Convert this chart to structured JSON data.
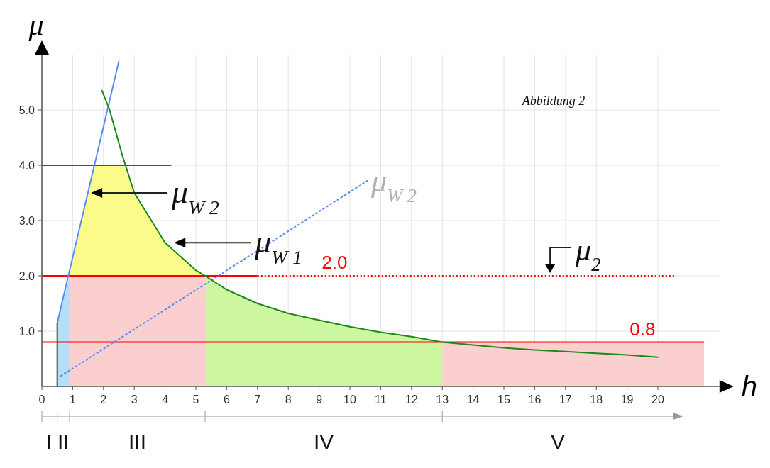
{
  "chart_data": {
    "type": "line",
    "xlabel": "h",
    "ylabel": "μ",
    "xlim": [
      0,
      22
    ],
    "ylim": [
      0,
      6
    ],
    "xticks": [
      0,
      1,
      2,
      3,
      4,
      5,
      6,
      7,
      8,
      9,
      10,
      11,
      12,
      13,
      14,
      15,
      16,
      17,
      18,
      19,
      20
    ],
    "yticks": [
      {
        "value": 1,
        "label": "1.0"
      },
      {
        "value": 2,
        "label": "2.0"
      },
      {
        "value": 3,
        "label": "3.0"
      },
      {
        "value": 4,
        "label": "4.0"
      },
      {
        "value": 5,
        "label": "5.0"
      }
    ],
    "grid": true,
    "series": [
      {
        "type": "area",
        "color": "#b3e0f7",
        "x": [
          0.5,
          0.9
        ],
        "values": [
          1.15,
          2.0
        ]
      },
      {
        "type": "area",
        "color": "#fbfb8a",
        "x": [
          0.9,
          1.7,
          2.65,
          3,
          4,
          5,
          5.3
        ],
        "values": [
          2.0,
          4.0,
          4.0,
          3.5,
          2.6,
          2.1,
          2.0
        ]
      },
      {
        "type": "area",
        "color": "#fbcfd0",
        "x": [
          0.9,
          5.3
        ],
        "values": [
          2.0,
          2.0
        ]
      },
      {
        "type": "area",
        "color": "#ccf7a0",
        "x": [
          5.3,
          6,
          7,
          8,
          9,
          10,
          11,
          12,
          13
        ],
        "values": [
          2.0,
          1.75,
          1.5,
          1.32,
          1.2,
          1.08,
          0.98,
          0.9,
          0.8
        ]
      },
      {
        "type": "area",
        "color": "#fbcfd0",
        "x": [
          13,
          21.5
        ],
        "values": [
          0.8,
          0.8
        ]
      },
      {
        "color": "#444444",
        "x": [
          0.5,
          0.5
        ],
        "values": [
          0,
          1.15
        ]
      },
      {
        "color": "#5a8cf0",
        "x": [
          0.5,
          2.5
        ],
        "values": [
          1.15,
          5.88
        ]
      },
      {
        "color": "#5a8cf0",
        "line_style": "dotted",
        "x": [
          0.62,
          10.6
        ],
        "values": [
          0.19,
          3.73
        ]
      },
      {
        "color": "#1a8a1a",
        "x": [
          1.95,
          2.2,
          2.6,
          3,
          4,
          5,
          5.3,
          6,
          7,
          8,
          9,
          10,
          11,
          12,
          13,
          14,
          15,
          16,
          17,
          18,
          19,
          20
        ],
        "values": [
          5.35,
          5.0,
          4.2,
          3.5,
          2.6,
          2.1,
          2.0,
          1.75,
          1.5,
          1.32,
          1.2,
          1.08,
          0.98,
          0.9,
          0.8,
          0.75,
          0.7,
          0.66,
          0.63,
          0.6,
          0.57,
          0.53
        ]
      }
    ],
    "ref_lines": [
      {
        "axis": "y",
        "value": 4.0,
        "color": "#ff0000",
        "label": null
      },
      {
        "axis": "y",
        "value": 2.0,
        "color": "#ff0000",
        "label": "2.0"
      },
      {
        "axis": "y",
        "value": 0.8,
        "color": "#ff0000",
        "label": "0.8"
      }
    ],
    "annotations": [
      "Abbildung 2",
      "I",
      "II",
      "III",
      "IV",
      "V",
      "μ$_{2}$",
      {
        "text": "μ$_{W 2}$",
        "x": 1.5,
        "y": 3.5
      },
      {
        "text": "μ$_{W 1}$",
        "x": 4.2,
        "y": 2.6
      },
      {
        "text": "μ$_{W 2}$",
        "x": 10.6,
        "y": 3.73
      }
    ]
  }
}
